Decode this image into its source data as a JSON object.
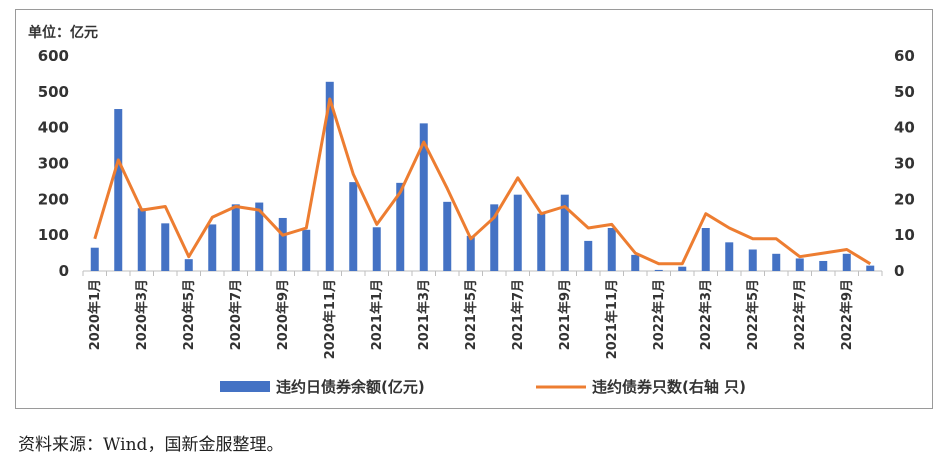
{
  "chart_data": {
    "type": "bar",
    "unit_label": "单位：亿元",
    "categories": [
      "2020年1月",
      "2020年2月",
      "2020年3月",
      "2020年4月",
      "2020年5月",
      "2020年6月",
      "2020年7月",
      "2020年8月",
      "2020年9月",
      "2020年10月",
      "2020年11月",
      "2020年12月",
      "2021年1月",
      "2021年2月",
      "2021年3月",
      "2021年4月",
      "2021年5月",
      "2021年6月",
      "2021年7月",
      "2021年8月",
      "2021年9月",
      "2021年10月",
      "2021年11月",
      "2021年12月",
      "2022年1月",
      "2022年2月",
      "2022年3月",
      "2022年4月",
      "2022年5月",
      "2022年6月",
      "2022年7月",
      "2022年8月",
      "2022年9月",
      "2022年10月"
    ],
    "x_tick_labels": [
      "2020年1月",
      "",
      "2020年3月",
      "",
      "2020年5月",
      "",
      "2020年7月",
      "",
      "2020年9月",
      "",
      "2020年11月",
      "",
      "2021年1月",
      "",
      "2021年3月",
      "",
      "2021年5月",
      "",
      "2021年7月",
      "",
      "2021年9月",
      "",
      "2021年11月",
      "",
      "2022年1月",
      "",
      "2022年3月",
      "",
      "2022年5月",
      "",
      "2022年7月",
      "",
      "2022年9月",
      ""
    ],
    "series": [
      {
        "name": "违约日债券余额(亿元)",
        "type": "bar",
        "axis": "left",
        "color": "#4472C4",
        "values": [
          65,
          452,
          175,
          133,
          33,
          130,
          186,
          191,
          148,
          115,
          528,
          248,
          122,
          246,
          412,
          193,
          98,
          186,
          213,
          160,
          213,
          84,
          120,
          45,
          3,
          12,
          120,
          80,
          60,
          48,
          35,
          28,
          48,
          15
        ]
      },
      {
        "name": "违约债券只数(右轴 只)",
        "type": "line",
        "axis": "right",
        "color": "#ED7D31",
        "values": [
          9,
          31,
          17,
          18,
          4,
          15,
          18,
          17,
          10,
          12,
          48,
          27,
          13,
          22,
          36,
          23,
          9,
          15,
          26,
          16,
          18,
          12,
          13,
          5,
          2,
          2,
          16,
          12,
          9,
          9,
          4,
          5,
          6,
          2
        ]
      }
    ],
    "y_left": {
      "min": 0,
      "max": 600,
      "ticks": [
        0,
        100,
        200,
        300,
        400,
        500,
        600
      ]
    },
    "y_right": {
      "min": 0,
      "max": 60,
      "ticks": [
        0,
        10,
        20,
        30,
        40,
        50,
        60
      ]
    },
    "legend_position": "bottom",
    "grid": false
  },
  "source_note": "资料来源：Wind，国新金服整理。"
}
